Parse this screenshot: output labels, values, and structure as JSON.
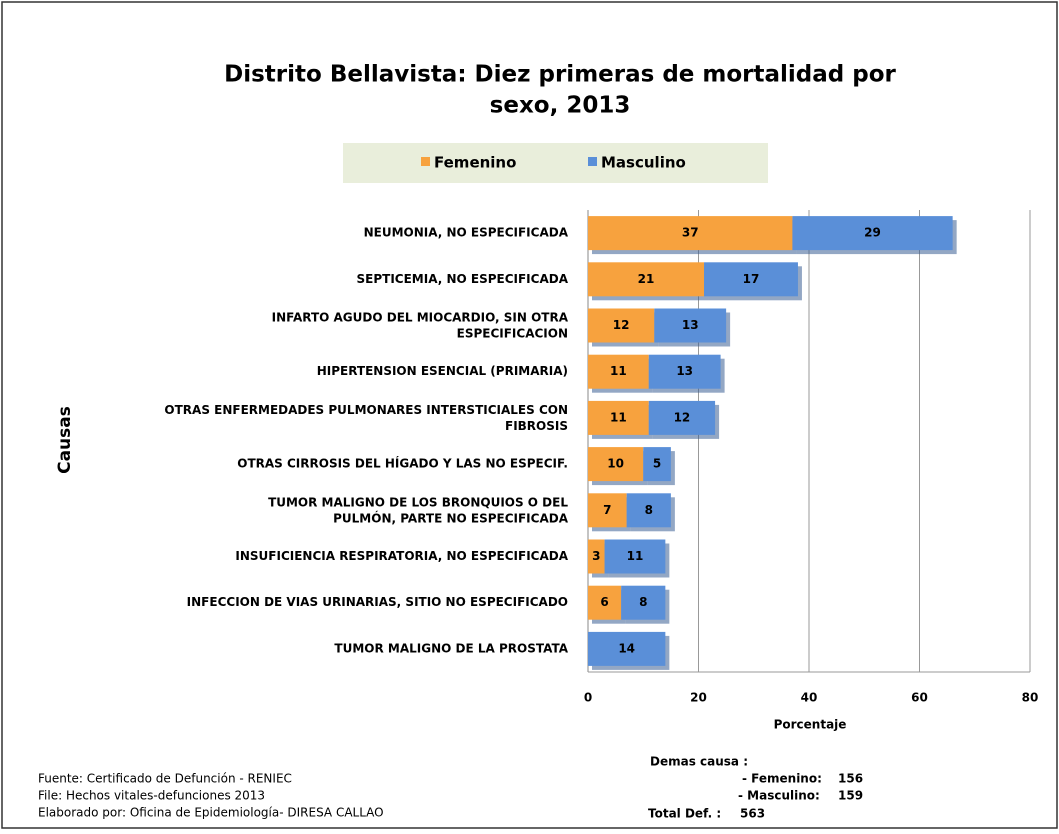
{
  "chart_data": {
    "type": "stacked-barh",
    "title": [
      "Distrito Bellavista:  Diez primeras de mortalidad por",
      "sexo, 2013"
    ],
    "categories": [
      "NEUMONIA, NO ESPECIFICADA",
      "SEPTICEMIA, NO ESPECIFICADA",
      "INFARTO AGUDO DEL MIOCARDIO, SIN OTRA\nESPECIFICACION",
      "HIPERTENSION ESENCIAL (PRIMARIA)",
      "OTRAS ENFERMEDADES  PULMONARES INTERSTICIALES CON\nFIBROSIS",
      "OTRAS CIRROSIS DEL HÍGADO  Y LAS NO ESPECIF.",
      "TUMOR MALIGNO DE LOS BRONQUIOS O DEL\nPULMÓN, PARTE NO ESPECIFICADA",
      "INSUFICIENCIA RESPIRATORIA, NO ESPECIFICADA",
      "INFECCION DE VIAS URINARIAS, SITIO NO ESPECIFICADO",
      "TUMOR MALIGNO DE LA PROSTATA"
    ],
    "series": [
      {
        "name": "Femenino",
        "color": "#f7a23e",
        "values": [
          37,
          21,
          12,
          11,
          11,
          10,
          7,
          3,
          6,
          0
        ]
      },
      {
        "name": "Masculino",
        "color": "#5a8fd8",
        "values": [
          29,
          17,
          13,
          13,
          12,
          5,
          8,
          11,
          8,
          14
        ]
      }
    ],
    "xlim": [
      0,
      80
    ],
    "xticks": [
      0,
      20,
      40,
      60,
      80
    ],
    "grid": true,
    "xlabel": "Porcentaje",
    "ylabel": "Causas",
    "notes": [
      "Fuente: Certificado de Defunción - RENIEC",
      "File: Hechos vitales-defunciones 2013",
      "Elaborado por: Oficina de Epidemiología-  DIRESA  CALLAO"
    ],
    "summary": {
      "title": "Demas causa :",
      "items": [
        {
          "label": "- Femenino:",
          "value": 156
        },
        {
          "label": "- Masculino:",
          "value": 159
        }
      ],
      "total": {
        "label": "Total Def. :",
        "value": 563
      }
    }
  }
}
